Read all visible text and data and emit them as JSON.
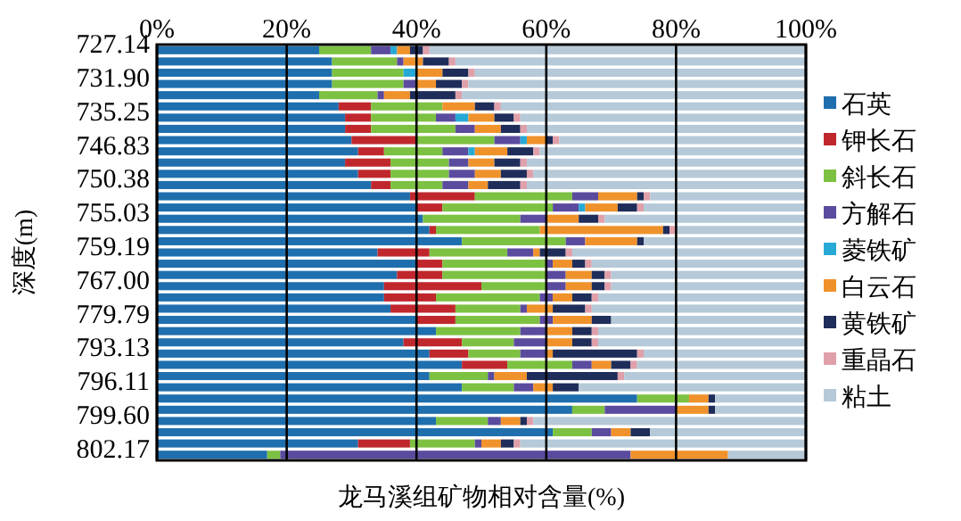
{
  "chart_data": {
    "type": "bar",
    "orientation": "horizontal",
    "stacked": true,
    "xlabel": "龙马溪组矿物相对含量(%)",
    "ylabel": "深度(m)",
    "categories": [
      "727.14",
      null,
      null,
      "731.90",
      null,
      null,
      "735.25",
      null,
      null,
      "746.83",
      null,
      null,
      "750.38",
      null,
      null,
      "755.03",
      null,
      null,
      "759.19",
      null,
      null,
      "767.00",
      null,
      null,
      "779.79",
      null,
      null,
      "793.13",
      null,
      null,
      "796.11",
      null,
      null,
      "799.60",
      null,
      null,
      "802.17"
    ],
    "xlim": [
      0,
      100
    ],
    "xticks": [
      {
        "value": 0,
        "label": "0%"
      },
      {
        "value": 20,
        "label": "20%"
      },
      {
        "value": 40,
        "label": "40%"
      },
      {
        "value": 60,
        "label": "60%"
      },
      {
        "value": 80,
        "label": "80%"
      },
      {
        "value": 100,
        "label": "100%"
      }
    ],
    "grid": "x",
    "legend": "right",
    "series": [
      {
        "name": "石英",
        "color": "#1f6fae",
        "values": [
          25,
          27,
          27,
          27,
          25,
          28,
          29,
          29,
          30,
          31,
          29,
          31,
          33,
          39,
          40,
          41,
          42,
          47,
          34,
          40,
          37,
          35,
          35,
          36,
          40,
          43,
          38,
          42,
          47,
          42,
          47,
          74,
          64,
          43,
          61,
          31,
          17
        ]
      },
      {
        "name": "钾长石",
        "color": "#c0272d",
        "values": [
          0,
          0,
          0,
          0,
          0,
          5,
          4,
          4,
          10,
          4,
          7,
          5,
          3,
          10,
          4,
          0,
          1,
          0,
          8,
          4,
          7,
          15,
          8,
          10,
          6,
          0,
          9,
          6,
          7,
          0,
          0,
          0,
          0,
          0,
          0,
          8,
          0
        ]
      },
      {
        "name": "斜长石",
        "color": "#7dc142",
        "values": [
          8,
          10,
          11,
          11,
          9,
          11,
          10,
          13,
          12,
          9,
          9,
          9,
          8,
          15,
          17,
          15,
          16,
          16,
          12,
          16,
          16,
          10,
          16,
          10,
          13,
          13,
          8,
          8,
          10,
          9,
          8,
          8,
          5,
          8,
          6,
          10,
          2
        ]
      },
      {
        "name": "方解石",
        "color": "#5b4b9e",
        "values": [
          3,
          1,
          0,
          2,
          1,
          0,
          3,
          3,
          4,
          4,
          3,
          4,
          4,
          4,
          4,
          4,
          0,
          3,
          4,
          1,
          3,
          3,
          2,
          1,
          2,
          4,
          5,
          4,
          3,
          1,
          3,
          0,
          11,
          2,
          3,
          1,
          54
        ]
      },
      {
        "name": "菱铁矿",
        "color": "#27a9d6",
        "values": [
          1,
          0,
          2,
          0,
          0,
          0,
          2,
          0,
          1,
          1,
          0,
          0,
          0,
          0,
          1,
          0,
          0,
          0,
          0,
          0,
          0,
          0,
          0,
          0,
          0,
          0,
          0,
          0,
          0,
          0,
          0,
          0,
          0,
          0,
          0,
          0,
          0
        ]
      },
      {
        "name": "白云石",
        "color": "#f0922b",
        "values": [
          2,
          3,
          4,
          3,
          4,
          5,
          4,
          4,
          3,
          5,
          4,
          4,
          3,
          6,
          5,
          5,
          19,
          8,
          1,
          3,
          4,
          4,
          3,
          4,
          6,
          4,
          4,
          1,
          3,
          5,
          3,
          3,
          5,
          3,
          3,
          3,
          15
        ]
      },
      {
        "name": "黄铁矿",
        "color": "#1f2d5a",
        "values": [
          2,
          4,
          4,
          4,
          7,
          3,
          3,
          3,
          1,
          4,
          4,
          4,
          5,
          1,
          3,
          3,
          1,
          1,
          4,
          2,
          2,
          2,
          3,
          5,
          3,
          3,
          3,
          13,
          3,
          14,
          4,
          1,
          1,
          1,
          3,
          2,
          0
        ]
      },
      {
        "name": "重晶石",
        "color": "#e0a0aa",
        "values": [
          1,
          1,
          1,
          1,
          1,
          1,
          1,
          1,
          1,
          1,
          1,
          1,
          1,
          1,
          1,
          1,
          1,
          0,
          1,
          1,
          1,
          1,
          1,
          1,
          0,
          1,
          1,
          1,
          1,
          1,
          0,
          0,
          0,
          1,
          0,
          1,
          0
        ]
      },
      {
        "name": "粘土",
        "color": "#b5c9d8",
        "values": [
          58,
          54,
          51,
          52,
          53,
          47,
          44,
          43,
          38,
          41,
          43,
          42,
          43,
          24,
          25,
          31,
          20,
          25,
          36,
          33,
          30,
          30,
          32,
          33,
          30,
          32,
          32,
          25,
          26,
          28,
          35,
          14,
          14,
          42,
          24,
          44,
          12
        ]
      }
    ]
  }
}
